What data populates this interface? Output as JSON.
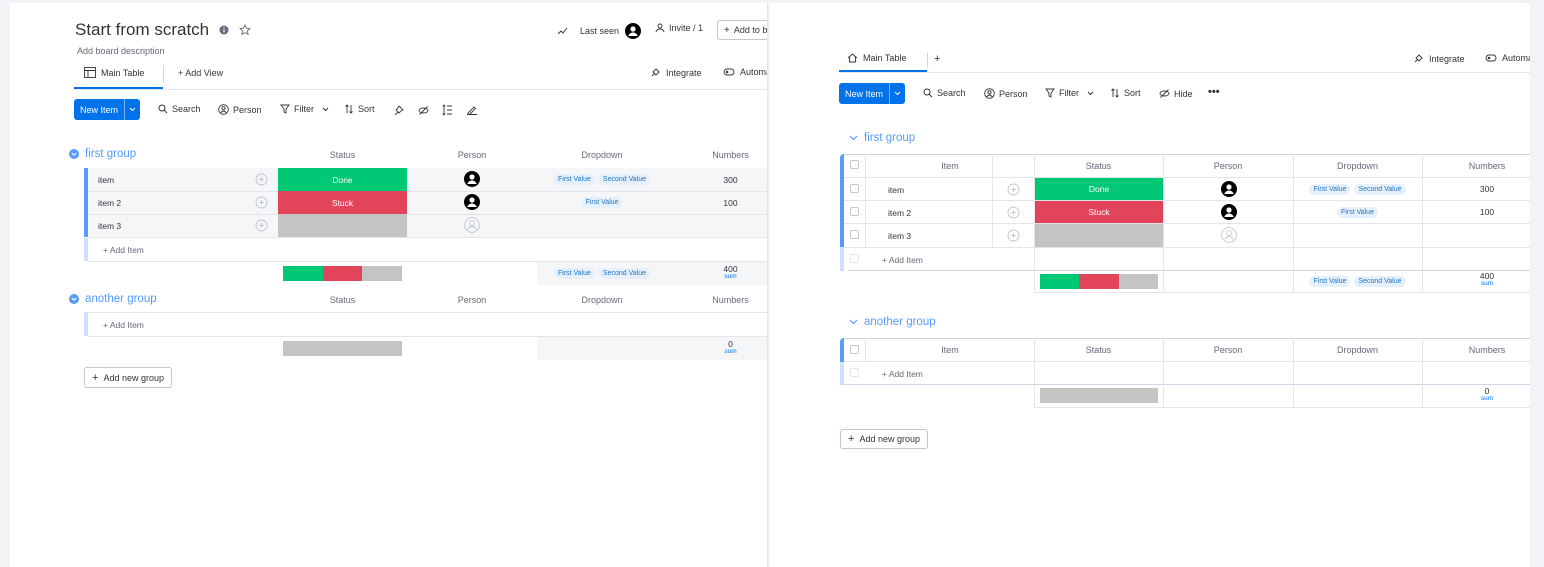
{
  "left": {
    "board_title": "Start from scratch",
    "board_description": "Add board description",
    "last_seen_label": "Last seen",
    "invite_label": "Invite / 1",
    "add_to_board_label": "Add to b",
    "tabs": {
      "main_table": "Main Table",
      "add_view": "+ Add View",
      "integrate": "Integrate",
      "automate": "Automa"
    },
    "toolbar": {
      "new_item": "New Item",
      "search": "Search",
      "person": "Person",
      "filter": "Filter",
      "sort": "Sort"
    },
    "columns": {
      "status": "Status",
      "person": "Person",
      "dropdown": "Dropdown",
      "numbers": "Numbers"
    },
    "groups": [
      {
        "title": "first group",
        "items": [
          {
            "name": "item",
            "status": "Done",
            "status_color": "#00c875",
            "has_person": true,
            "dropdown": [
              "First Value",
              "Second Value"
            ],
            "number": "300"
          },
          {
            "name": "item 2",
            "status": "Stuck",
            "status_color": "#e2445c",
            "has_person": true,
            "dropdown": [
              "First Value"
            ],
            "number": "100"
          },
          {
            "name": "item 3",
            "status": "",
            "status_color": "#c4c4c4",
            "has_person": false,
            "dropdown": [],
            "number": ""
          }
        ],
        "add_item": "+ Add Item",
        "summary": {
          "dropdown": [
            "First Value",
            "Second Value"
          ],
          "number": "400",
          "number_label": "sum",
          "status_segments": [
            0.333,
            0.333,
            0.334
          ]
        }
      },
      {
        "title": "another group",
        "items": [],
        "add_item": "+ Add Item",
        "summary": {
          "dropdown": [],
          "number": "0",
          "number_label": "sum"
        }
      }
    ],
    "add_new_group": "Add new group"
  },
  "right": {
    "tabs": {
      "main_table": "Main Table",
      "add": "+",
      "integrate": "Integrate",
      "automate": "Automa"
    },
    "toolbar": {
      "new_item": "New Item",
      "search": "Search",
      "person": "Person",
      "filter": "Filter",
      "sort": "Sort",
      "hide": "Hide",
      "more": "•••"
    },
    "columns": {
      "item": "Item",
      "status": "Status",
      "person": "Person",
      "dropdown": "Dropdown",
      "numbers": "Numbers"
    },
    "groups": [
      {
        "title": "first group",
        "items": [
          {
            "name": "item",
            "status": "Done",
            "status_color": "#00c875",
            "has_person": true,
            "dropdown": [
              "First Value",
              "Second Value"
            ],
            "number": "300"
          },
          {
            "name": "item 2",
            "status": "Stuck",
            "status_color": "#e2445c",
            "has_person": true,
            "dropdown": [
              "First Value"
            ],
            "number": "100"
          },
          {
            "name": "item 3",
            "status": "",
            "status_color": "#c4c4c4",
            "has_person": false,
            "dropdown": [],
            "number": ""
          }
        ],
        "add_item": "+ Add Item",
        "summary": {
          "dropdown": [
            "First Value",
            "Second Value"
          ],
          "number": "400",
          "number_label": "sum",
          "status_segments": [
            0.333,
            0.333,
            0.334
          ]
        }
      },
      {
        "title": "another group",
        "items": [],
        "add_item": "+ Add Item",
        "summary": {
          "dropdown": [],
          "number": "0",
          "number_label": "sum"
        }
      }
    ],
    "add_new_group": "Add new group"
  }
}
